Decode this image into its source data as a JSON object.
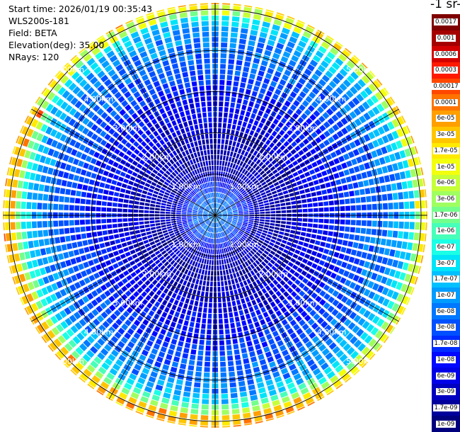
{
  "info": {
    "start_time": "Start time: 2026/01/19 00:35:43",
    "instrument": "WLS200s-181",
    "field": "Field: BETA",
    "elevation": "Elevation(deg): 35.00",
    "nrays": "NRays: 120"
  },
  "colorbar": {
    "units_label": "-1 sr-",
    "levels": [
      "0.0017",
      "0.001",
      "0.0006",
      "0.0003",
      "0.00017",
      "0.0001",
      "6e-05",
      "3e-05",
      "1.7e-05",
      "1e-05",
      "6e-06",
      "3e-06",
      "1.7e-06",
      "1e-06",
      "6e-07",
      "3e-07",
      "1.7e-07",
      "1e-07",
      "6e-08",
      "3e-08",
      "1.7e-08",
      "1e-08",
      "6e-09",
      "3e-09",
      "1.7e-09",
      "1e-09"
    ],
    "colors": [
      "#7f0000",
      "#a50000",
      "#d40000",
      "#ff1a00",
      "#ff4700",
      "#ff7300",
      "#ff9f00",
      "#ffc600",
      "#ffea00",
      "#f2ff0d",
      "#c6ff39",
      "#9fff60",
      "#73ff8c",
      "#47ffb9",
      "#1affe5",
      "#00e4f8",
      "#00c0ff",
      "#009cff",
      "#0078ff",
      "#0050ff",
      "#002cff",
      "#0008ff",
      "#0000e8",
      "#0000c0",
      "#00009c",
      "#00007f"
    ]
  },
  "chart_data": {
    "type": "heatmap",
    "title": "",
    "projection": "polar PPI",
    "field": "BETA",
    "elevation_deg": 35.0,
    "n_rays": 120,
    "range_rings_km": [
      1,
      2,
      3,
      4,
      5
    ],
    "ring_labels": [
      "1.00km",
      "2.00km",
      "3.00km",
      "4.00km",
      "5.00km"
    ],
    "max_range_km": 5.15,
    "value_scale": "log",
    "value_range": [
      1e-09,
      0.0017
    ],
    "range_profile_log10": [
      [
        0.0,
        -7.0
      ],
      [
        0.5,
        -7.3
      ],
      [
        1.0,
        -8.3
      ],
      [
        1.5,
        -8.5
      ],
      [
        2.0,
        -8.3
      ],
      [
        2.5,
        -8.0
      ],
      [
        3.0,
        -7.8
      ],
      [
        3.5,
        -7.4
      ],
      [
        4.0,
        -7.2
      ],
      [
        4.5,
        -6.9
      ],
      [
        5.0,
        -6.0
      ],
      [
        5.15,
        -5.4
      ]
    ],
    "enhanced_sector": {
      "azimuth_deg": [
        150,
        300
      ],
      "peak_log10": -5.2,
      "peak_range_km": 4.9
    }
  }
}
